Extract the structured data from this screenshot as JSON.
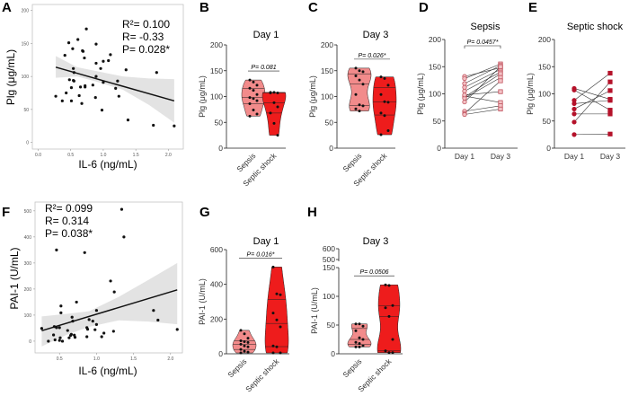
{
  "colors": {
    "sepsis": "#f28b8b",
    "shock": "#ee1c1c",
    "paired_sepsis": "#c0505c",
    "paired_shock": "#b5122a",
    "band": "#e3e3e3"
  },
  "chart_data": [
    {
      "id": "A",
      "panel_label": "A",
      "type": "scatter",
      "xlabel": "IL-6 (ng/mL)",
      "ylabel": "Plg (μg/mL)",
      "xlim": [
        -0.09,
        2.23
      ],
      "ylim": [
        -10,
        209
      ],
      "xticks": [
        "0.0",
        "0.5",
        "1.0",
        "1.5",
        "2.0"
      ],
      "yticks": [
        "0",
        "50",
        "100",
        "150",
        "200"
      ],
      "grid": false,
      "stats": [
        "R²= 0.100",
        "R= -0.33",
        "P= 0.028*"
      ],
      "fit": {
        "x": [
          0.27,
          2.09
        ],
        "y": [
          114,
          63
        ]
      },
      "band": {
        "x": [
          0.27,
          0.6,
          0.9,
          1.3,
          1.7,
          2.09
        ],
        "lower": [
          98,
          100,
          92,
          80,
          57,
          30
        ],
        "upper": [
          131,
          114,
          108,
          100,
          97,
          96
        ]
      },
      "points": [
        [
          0.27,
          70
        ],
        [
          0.37,
          63
        ],
        [
          0.41,
          132
        ],
        [
          0.43,
          75
        ],
        [
          0.47,
          151
        ],
        [
          0.48,
          95
        ],
        [
          0.51,
          83
        ],
        [
          0.51,
          63
        ],
        [
          0.53,
          142
        ],
        [
          0.54,
          94
        ],
        [
          0.54,
          112
        ],
        [
          0.55,
          93
        ],
        [
          0.55,
          106
        ],
        [
          0.61,
          156
        ],
        [
          0.63,
          71
        ],
        [
          0.65,
          84
        ],
        [
          0.67,
          59
        ],
        [
          0.68,
          139
        ],
        [
          0.69,
          138
        ],
        [
          0.71,
          128
        ],
        [
          0.72,
          86
        ],
        [
          0.72,
          84
        ],
        [
          0.74,
          172
        ],
        [
          0.84,
          87
        ],
        [
          0.88,
          68
        ],
        [
          0.89,
          149
        ],
        [
          0.89,
          120
        ],
        [
          0.89,
          100
        ],
        [
          0.96,
          112
        ],
        [
          0.98,
          49
        ],
        [
          1.0,
          123
        ],
        [
          1.0,
          91
        ],
        [
          1.08,
          124
        ],
        [
          1.11,
          133
        ],
        [
          1.19,
          82
        ],
        [
          1.22,
          93
        ],
        [
          1.24,
          70
        ],
        [
          1.35,
          110
        ],
        [
          1.38,
          34
        ],
        [
          1.82,
          106
        ],
        [
          1.77,
          26
        ],
        [
          2.09,
          25
        ]
      ]
    },
    {
      "id": "B",
      "panel_label": "B",
      "type": "violin",
      "title": "Day 1",
      "ylabel": "Plg (μg/mL)",
      "ylim": [
        0,
        200
      ],
      "yticks": [
        "0",
        "50",
        "100",
        "150",
        "200"
      ],
      "categories": [
        "Sepsis",
        "Septic shock"
      ],
      "pvalue": "P= 0.081",
      "series": [
        {
          "name": "Sepsis",
          "values": [
            132,
            128,
            122,
            116,
            112,
            104,
            98,
            96,
            92,
            86,
            74,
            66,
            62
          ]
        },
        {
          "name": "Septic shock",
          "values": [
            108,
            108,
            107,
            107,
            88,
            80,
            68,
            48,
            25
          ]
        }
      ]
    },
    {
      "id": "C",
      "panel_label": "C",
      "type": "violin",
      "title": "Day 3",
      "ylabel": "Plg (μg/mL)",
      "ylim": [
        0,
        200
      ],
      "yticks": [
        "0",
        "50",
        "100",
        "150",
        "200"
      ],
      "categories": [
        "Sepsis",
        "Septic shock"
      ],
      "pvalue": "P= 0.026*",
      "series": [
        {
          "name": "Sepsis",
          "values": [
            155,
            150,
            148,
            140,
            132,
            124,
            104,
            84,
            82,
            76,
            72
          ]
        },
        {
          "name": "Septic shock",
          "values": [
            138,
            135,
            122,
            104,
            90,
            89,
            68,
            63,
            34,
            26
          ]
        }
      ]
    },
    {
      "id": "D",
      "panel_label": "D",
      "type": "paired",
      "title": "Sepsis",
      "ylabel": "Plg (μg/mL)",
      "ylim": [
        0,
        200
      ],
      "yticks": [
        "0",
        "50",
        "100",
        "150",
        "200"
      ],
      "categories": [
        "Day 1",
        "Day 3"
      ],
      "pvalue": "P= 0.0457*",
      "pairs": [
        [
          132,
          148
        ],
        [
          128,
          155
        ],
        [
          119,
          152
        ],
        [
          112,
          145
        ],
        [
          105,
          140
        ],
        [
          96,
          84
        ],
        [
          94,
          137
        ],
        [
          92,
          130
        ],
        [
          85,
          150
        ],
        [
          68,
          78
        ],
        [
          64,
          124
        ],
        [
          62,
          72
        ],
        [
          98,
          104
        ]
      ]
    },
    {
      "id": "E",
      "panel_label": "E",
      "type": "paired",
      "title": "Septic shock",
      "ylabel": "Plg (μg/mL)",
      "ylim": [
        0,
        200
      ],
      "yticks": [
        "0",
        "50",
        "100",
        "150",
        "200"
      ],
      "categories": [
        "Day 1",
        "Day 3"
      ],
      "pairs": [
        [
          110,
          90
        ],
        [
          107,
          70
        ],
        [
          88,
          138
        ],
        [
          82,
          88
        ],
        [
          72,
          106
        ],
        [
          63,
          63
        ],
        [
          48,
          122
        ],
        [
          25,
          26
        ]
      ]
    },
    {
      "id": "F",
      "panel_label": "F",
      "type": "scatter",
      "xlabel": "IL-6 (ng/mL)",
      "ylabel": "PAI-1 (U/mL)",
      "xlim": [
        0.17,
        2.16
      ],
      "ylim": [
        -45,
        534
      ],
      "xticks": [
        "0.5",
        "1.0",
        "1.5",
        "2.0"
      ],
      "yticks": [
        "0",
        "100",
        "200",
        "300",
        "400",
        "500"
      ],
      "grid": false,
      "stats": [
        "R²= 0.099",
        "R= 0.314",
        "P= 0.038*"
      ],
      "fit": {
        "x": [
          0.26,
          2.09
        ],
        "y": [
          40,
          197
        ]
      },
      "band": {
        "x": [
          0.26,
          0.6,
          0.9,
          1.3,
          1.7,
          2.09
        ],
        "lower": [
          -20,
          25,
          55,
          80,
          75,
          65
        ],
        "upper": [
          95,
          105,
          115,
          170,
          235,
          300
        ]
      },
      "points": [
        [
          0.26,
          49
        ],
        [
          0.35,
          0
        ],
        [
          0.42,
          24
        ],
        [
          0.43,
          56
        ],
        [
          0.44,
          5
        ],
        [
          0.46,
          52
        ],
        [
          0.46,
          350
        ],
        [
          0.5,
          52
        ],
        [
          0.5,
          3
        ],
        [
          0.51,
          13
        ],
        [
          0.52,
          135
        ],
        [
          0.52,
          109
        ],
        [
          0.54,
          0
        ],
        [
          0.61,
          41
        ],
        [
          0.63,
          13
        ],
        [
          0.65,
          22
        ],
        [
          0.66,
          26
        ],
        [
          0.67,
          92
        ],
        [
          0.68,
          77
        ],
        [
          0.7,
          23
        ],
        [
          0.71,
          15
        ],
        [
          0.73,
          150
        ],
        [
          0.84,
          340
        ],
        [
          0.87,
          52
        ],
        [
          0.88,
          46
        ],
        [
          0.87,
          17
        ],
        [
          0.9,
          83
        ],
        [
          0.95,
          77
        ],
        [
          0.98,
          44
        ],
        [
          1.0,
          64
        ],
        [
          1.0,
          118
        ],
        [
          1.07,
          17
        ],
        [
          1.1,
          31
        ],
        [
          1.19,
          231
        ],
        [
          1.23,
          38
        ],
        [
          1.24,
          189
        ],
        [
          1.34,
          506
        ],
        [
          1.37,
          400
        ],
        [
          1.77,
          118
        ],
        [
          1.83,
          81
        ],
        [
          2.09,
          45
        ]
      ]
    },
    {
      "id": "G",
      "panel_label": "G",
      "type": "violin",
      "title": "Day 1",
      "ylabel": "PAI-1 (U/mL)",
      "ylim": [
        0,
        600
      ],
      "yticks": [
        "0",
        "200",
        "400",
        "600"
      ],
      "categories": [
        "Sepsis",
        "Septic shock"
      ],
      "pvalue": "P= 0.016*",
      "series": [
        {
          "name": "Sepsis",
          "values": [
            135,
            115,
            90,
            75,
            70,
            65,
            55,
            45,
            40,
            25,
            15,
            10,
            5
          ]
        },
        {
          "name": "Septic shock",
          "values": [
            500,
            345,
            340,
            235,
            195,
            155,
            45,
            40,
            5,
            5
          ]
        }
      ]
    },
    {
      "id": "H",
      "panel_label": "H",
      "type": "violin",
      "title": "Day 3",
      "ylabel": "PAI-1 (U/mL)",
      "ylim": [
        0,
        150
      ],
      "yticks": [
        "0",
        "50",
        "100",
        "150"
      ],
      "broken_axis_ticks": [
        "500",
        "600"
      ],
      "categories": [
        "Sepsis",
        "Septic shock"
      ],
      "pvalue": "P= 0.0506",
      "series": [
        {
          "name": "Sepsis",
          "values": [
            52,
            52,
            48,
            40,
            28,
            25,
            20,
            18,
            14,
            12,
            12
          ]
        },
        {
          "name": "Septic shock",
          "values": [
            120,
            119,
            84,
            80,
            65,
            25,
            5,
            2,
            2
          ]
        }
      ]
    }
  ]
}
